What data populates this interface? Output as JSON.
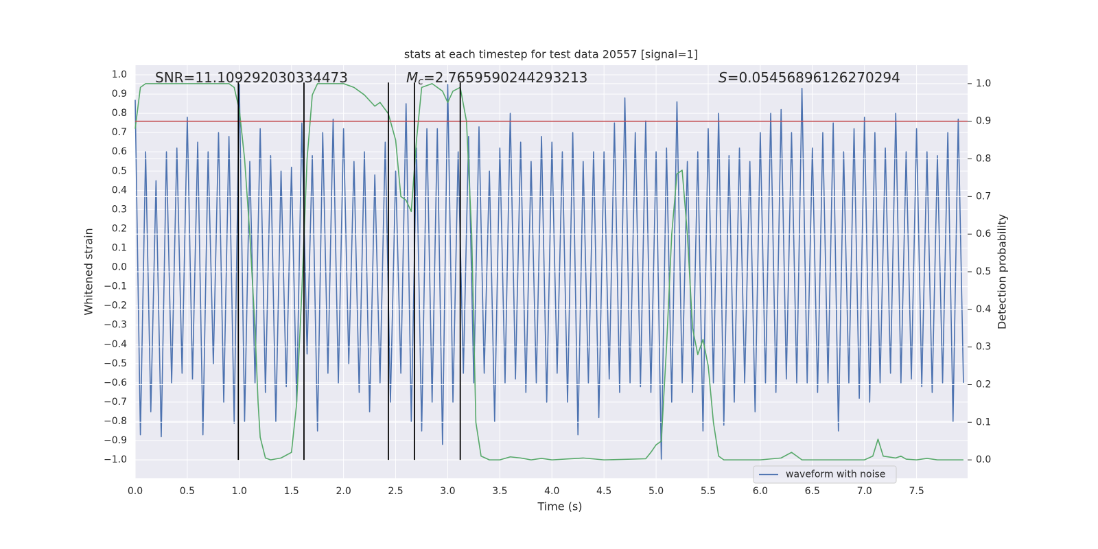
{
  "chart_data": {
    "type": "line",
    "title": "stats at each timestep for test data 20557 [signal=1]",
    "xlabel": "Time (s)",
    "ylabel": "Whitened strain",
    "y2label": "Detection probability",
    "xlim": [
      0,
      7.99
    ],
    "ylim": [
      -1.096,
      1.05
    ],
    "y2lim": [
      -0.049,
      1.049
    ],
    "grid": true,
    "legend": "lower right",
    "xticks": [
      {
        "value": 0,
        "label": "0.0"
      },
      0.5,
      {
        "value": 1,
        "label": "1.0"
      },
      1.5,
      {
        "value": 2,
        "label": "2.0"
      },
      2.5,
      {
        "value": 3,
        "label": "3.0"
      },
      3.5,
      {
        "value": 4,
        "label": "4.0"
      },
      4.5,
      {
        "value": 5,
        "label": "5.0"
      },
      5.5,
      {
        "value": 6,
        "label": "6.0"
      },
      6.5,
      {
        "value": 7,
        "label": "7.0"
      },
      7.5
    ],
    "yticks": [
      {
        "value": -1,
        "label": "−1.0"
      },
      {
        "value": -0.9,
        "label": "−0.9"
      },
      {
        "value": -0.8,
        "label": "−0.8"
      },
      {
        "value": -0.7,
        "label": "−0.7"
      },
      {
        "value": -0.6,
        "label": "−0.6"
      },
      {
        "value": -0.5,
        "label": "−0.5"
      },
      {
        "value": -0.4,
        "label": "−0.4"
      },
      {
        "value": -0.3,
        "label": "−0.3"
      },
      {
        "value": -0.2,
        "label": "−0.2"
      },
      {
        "value": -0.1,
        "label": "−0.1"
      },
      {
        "value": 0,
        "label": "0.0"
      },
      0.1,
      0.2,
      0.3,
      0.4,
      0.5,
      0.6,
      0.7,
      0.8,
      0.9,
      {
        "value": 1,
        "label": "1.0"
      }
    ],
    "y2ticks": [
      {
        "value": 0,
        "label": "0.0"
      },
      0.1,
      0.2,
      0.3,
      0.4,
      0.5,
      0.6,
      0.7,
      0.8,
      0.9,
      {
        "value": 1,
        "label": "1.0"
      }
    ],
    "annotations": [
      {
        "text": "SNR=11.109292030334473"
      },
      {
        "symbol": "M",
        "sub": "c",
        "text": "=2.7659590244293213"
      },
      {
        "symbol": "S",
        "text": "=0.05456896126270294"
      }
    ],
    "series": [
      {
        "name": "waveform with noise",
        "color": "#4c72b0",
        "x": [
          0,
          0.05,
          0.1,
          0.15,
          0.2,
          0.25,
          0.3,
          0.35,
          0.4,
          0.45,
          0.5,
          0.55,
          0.6,
          0.65,
          0.7,
          0.75,
          0.8,
          0.85,
          0.9,
          0.95,
          1,
          1.05,
          1.1,
          1.15,
          1.2,
          1.25,
          1.3,
          1.35,
          1.4,
          1.45,
          1.5,
          1.55,
          1.6,
          1.65,
          1.7,
          1.75,
          1.8,
          1.85,
          1.9,
          1.95,
          2,
          2.05,
          2.1,
          2.15,
          2.2,
          2.25,
          2.3,
          2.35,
          2.4,
          2.45,
          2.5,
          2.55,
          2.6,
          2.65,
          2.7,
          2.75,
          2.8,
          2.85,
          2.9,
          2.95,
          3,
          3.05,
          3.1,
          3.15,
          3.2,
          3.25,
          3.3,
          3.35,
          3.4,
          3.45,
          3.5,
          3.55,
          3.6,
          3.65,
          3.7,
          3.75,
          3.8,
          3.85,
          3.9,
          3.95,
          4,
          4.05,
          4.1,
          4.15,
          4.2,
          4.25,
          4.3,
          4.35,
          4.4,
          4.45,
          4.5,
          4.55,
          4.6,
          4.65,
          4.7,
          4.75,
          4.8,
          4.85,
          4.9,
          4.95,
          5,
          5.05,
          5.1,
          5.15,
          5.2,
          5.25,
          5.3,
          5.35,
          5.4,
          5.45,
          5.5,
          5.55,
          5.6,
          5.65,
          5.7,
          5.75,
          5.8,
          5.85,
          5.9,
          5.95,
          6,
          6.05,
          6.1,
          6.15,
          6.2,
          6.25,
          6.3,
          6.35,
          6.4,
          6.45,
          6.5,
          6.55,
          6.6,
          6.65,
          6.7,
          6.75,
          6.8,
          6.85,
          6.9,
          6.95,
          7,
          7.05,
          7.1,
          7.15,
          7.2,
          7.25,
          7.3,
          7.35,
          7.4,
          7.45,
          7.5,
          7.55,
          7.6,
          7.65,
          7.7,
          7.75,
          7.8,
          7.85,
          7.9,
          7.95
        ],
        "values": [
          0.87,
          -0.87,
          0.6,
          -0.75,
          0.45,
          -0.88,
          0.6,
          -0.6,
          0.62,
          -0.55,
          0.78,
          -0.58,
          0.65,
          -0.87,
          0.6,
          -0.5,
          0.7,
          -0.7,
          0.68,
          -0.81,
          0.95,
          -0.8,
          0.55,
          -0.6,
          0.72,
          -0.65,
          0.58,
          -0.8,
          0.5,
          -0.62,
          0.52,
          -0.7,
          0.75,
          -0.45,
          0.58,
          -0.85,
          0.7,
          -0.55,
          0.77,
          -0.6,
          0.72,
          -0.5,
          0.55,
          -0.65,
          0.6,
          -0.75,
          0.48,
          -0.6,
          0.65,
          -0.7,
          0.5,
          -0.55,
          0.85,
          -0.8,
          0.62,
          -0.85,
          0.72,
          -0.7,
          0.72,
          -0.92,
          0.95,
          -0.7,
          0.6,
          -0.55,
          0.68,
          -0.6,
          0.73,
          -0.55,
          0.5,
          -0.8,
          0.62,
          -0.6,
          0.8,
          -0.58,
          0.65,
          -0.65,
          0.55,
          -0.6,
          0.68,
          -0.7,
          0.65,
          -0.55,
          0.6,
          -0.7,
          0.7,
          -0.87,
          0.55,
          -0.6,
          0.6,
          -0.78,
          0.6,
          -0.58,
          0.75,
          -0.65,
          0.88,
          -0.6,
          0.7,
          -0.62,
          0.76,
          -0.65,
          0.6,
          -1.0,
          0.62,
          -0.7,
          0.86,
          -0.6,
          0.55,
          -0.65,
          0.6,
          -0.85,
          0.72,
          -0.6,
          0.8,
          -0.82,
          0.58,
          -0.7,
          0.62,
          -0.6,
          0.55,
          -0.75,
          0.7,
          -0.6,
          0.8,
          -0.65,
          0.82,
          -0.58,
          0.7,
          -0.6,
          0.93,
          -0.6,
          0.62,
          -0.65,
          0.7,
          -0.6,
          0.75,
          -0.85,
          0.6,
          -0.6,
          0.72,
          -0.68,
          0.78,
          -0.7,
          0.7,
          -0.6,
          0.62,
          -0.55,
          0.8,
          -0.6,
          0.6,
          -0.58,
          0.72,
          -0.62,
          0.6,
          -0.65,
          0.58,
          -0.6,
          0.7,
          -0.8,
          0.77,
          -0.6
        ]
      },
      {
        "color": "#55a868",
        "axis": "y2",
        "x": [
          0,
          0.05,
          0.1,
          0.9,
          0.95,
          1,
          1.05,
          1.1,
          1.15,
          1.18,
          1.2,
          1.25,
          1.3,
          1.4,
          1.5,
          1.55,
          1.6,
          1.65,
          1.7,
          1.75,
          2,
          2.1,
          2.2,
          2.3,
          2.35,
          2.43,
          2.5,
          2.55,
          2.6,
          2.65,
          2.7,
          2.75,
          2.85,
          2.95,
          3,
          3.05,
          3.12,
          3.18,
          3.23,
          3.27,
          3.32,
          3.4,
          3.5,
          3.6,
          3.7,
          3.8,
          3.9,
          4,
          4.3,
          4.5,
          4.9,
          4.95,
          5,
          5.05,
          5.1,
          5.15,
          5.2,
          5.25,
          5.3,
          5.35,
          5.4,
          5.45,
          5.5,
          5.55,
          5.6,
          5.65,
          6,
          6.2,
          6.3,
          6.35,
          6.4,
          6.5,
          7,
          7.08,
          7.13,
          7.18,
          7.3,
          7.35,
          7.4,
          7.5,
          7.6,
          7.7,
          7.95
        ],
        "values": [
          0.88,
          0.99,
          1.0,
          1.0,
          0.99,
          0.93,
          0.8,
          0.6,
          0.35,
          0.15,
          0.06,
          0.005,
          0.0,
          0.005,
          0.02,
          0.15,
          0.45,
          0.8,
          0.97,
          1.0,
          1.0,
          0.99,
          0.97,
          0.94,
          0.95,
          0.92,
          0.85,
          0.7,
          0.69,
          0.66,
          0.85,
          0.99,
          1.0,
          0.98,
          0.95,
          0.98,
          0.99,
          0.9,
          0.6,
          0.1,
          0.01,
          0.0,
          0.0,
          0.008,
          0.005,
          0.0,
          0.004,
          0.0,
          0.005,
          0.0,
          0.003,
          0.02,
          0.04,
          0.05,
          0.3,
          0.6,
          0.76,
          0.77,
          0.6,
          0.35,
          0.28,
          0.32,
          0.25,
          0.1,
          0.01,
          0.0,
          0.0,
          0.005,
          0.02,
          0.01,
          0.0,
          0.0,
          0.0,
          0.01,
          0.055,
          0.01,
          0.005,
          0.01,
          0.002,
          0.0,
          0.004,
          0.0,
          0.0
        ]
      }
    ],
    "hlines": [
      {
        "y": 0.9,
        "axis": "y2",
        "color": "#c44e52"
      }
    ],
    "vlines": {
      "x": [
        0.99,
        1.62,
        2.43,
        2.68,
        3.12
      ],
      "ymin": -1.0,
      "ymax": 0.96,
      "color": "#000000"
    }
  }
}
